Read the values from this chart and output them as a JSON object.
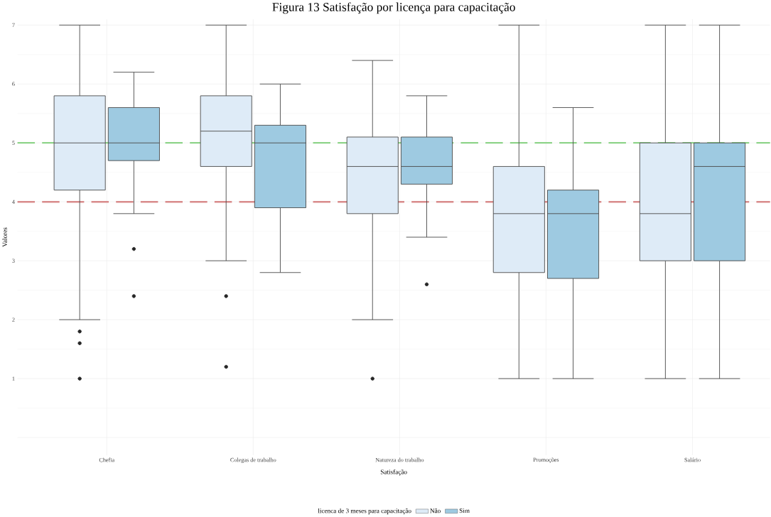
{
  "chart_data": {
    "type": "box",
    "title": "Figura 13 Satisfação por licença para capacitação",
    "xlabel": "Satisfação",
    "ylabel": "Valores",
    "legend_title": "licenca de 3 meses para capacitação",
    "categories": [
      "Chefia",
      "Colegas de trabalho",
      "Natureza do trabalho",
      "Promoções",
      "Salário"
    ],
    "series": [
      {
        "name": "Não",
        "color": "#deebf7",
        "boxes": [
          {
            "low": 2.0,
            "q1": 4.2,
            "median": 5.0,
            "q3": 5.8,
            "high": 7.0,
            "outliers": [
              1.8,
              1.6,
              1.0
            ]
          },
          {
            "low": 3.0,
            "q1": 4.6,
            "median": 5.2,
            "q3": 5.8,
            "high": 7.0,
            "outliers": [
              2.4,
              1.2
            ]
          },
          {
            "low": 2.0,
            "q1": 3.8,
            "median": 4.6,
            "q3": 5.1,
            "high": 6.4,
            "outliers": [
              1.0
            ]
          },
          {
            "low": 1.0,
            "q1": 2.8,
            "median": 3.8,
            "q3": 4.6,
            "high": 7.0
          },
          {
            "low": 1.0,
            "q1": 3.0,
            "median": 3.8,
            "q3": 5.0,
            "high": 7.0
          }
        ]
      },
      {
        "name": "Sim",
        "color": "#9ecae1",
        "boxes": [
          {
            "low": 3.8,
            "q1": 4.7,
            "median": 5.0,
            "q3": 5.6,
            "high": 6.2,
            "outliers": [
              3.2,
              2.4
            ]
          },
          {
            "low": 2.8,
            "q1": 3.9,
            "median": 5.0,
            "q3": 5.3,
            "high": 6.0
          },
          {
            "low": 3.4,
            "q1": 4.3,
            "median": 4.6,
            "q3": 5.1,
            "high": 5.8,
            "outliers": [
              2.6
            ]
          },
          {
            "low": 1.0,
            "q1": 2.7,
            "median": 3.8,
            "q3": 4.2,
            "high": 5.6
          },
          {
            "low": 1.0,
            "q1": 3.0,
            "median": 4.6,
            "q3": 5.0,
            "high": 7.0
          }
        ]
      }
    ],
    "ylim": [
      -0.3,
      7.1
    ],
    "yticks": [
      {
        "value": 0,
        "label": null
      },
      1,
      2,
      3,
      4,
      5,
      6,
      7
    ],
    "ref_lines": [
      {
        "axis": "y",
        "value": 5,
        "color": "#8fd48a",
        "line_style": "dashed"
      },
      {
        "axis": "y",
        "value": 4,
        "color": "#d98c8c",
        "line_style": "dashed"
      }
    ],
    "grid": true,
    "legend": "bottom"
  }
}
